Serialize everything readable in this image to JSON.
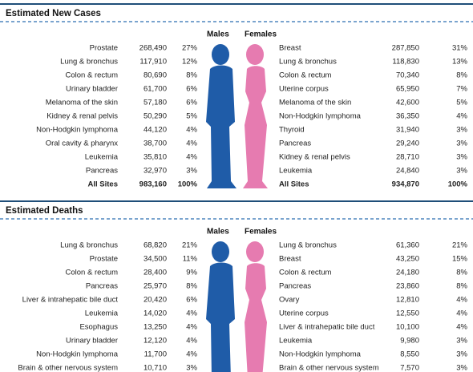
{
  "sections": [
    {
      "title": "Estimated New Cases",
      "males_label": "Males",
      "females_label": "Females",
      "males": [
        [
          "Prostate",
          "268,490",
          "27%"
        ],
        [
          "Lung & bronchus",
          "117,910",
          "12%"
        ],
        [
          "Colon & rectum",
          "80,690",
          "8%"
        ],
        [
          "Urinary bladder",
          "61,700",
          "6%"
        ],
        [
          "Melanoma of the skin",
          "57,180",
          "6%"
        ],
        [
          "Kidney & renal pelvis",
          "50,290",
          "5%"
        ],
        [
          "Non-Hodgkin lymphoma",
          "44,120",
          "4%"
        ],
        [
          "Oral cavity & pharynx",
          "38,700",
          "4%"
        ],
        [
          "Leukemia",
          "35,810",
          "4%"
        ],
        [
          "Pancreas",
          "32,970",
          "3%"
        ]
      ],
      "males_total": [
        "All Sites",
        "983,160",
        "100%"
      ],
      "females": [
        [
          "Breast",
          "287,850",
          "31%"
        ],
        [
          "Lung & bronchus",
          "118,830",
          "13%"
        ],
        [
          "Colon & rectum",
          "70,340",
          "8%"
        ],
        [
          "Uterine corpus",
          "65,950",
          "7%"
        ],
        [
          "Melanoma of the skin",
          "42,600",
          "5%"
        ],
        [
          "Non-Hodgkin lymphoma",
          "36,350",
          "4%"
        ],
        [
          "Thyroid",
          "31,940",
          "3%"
        ],
        [
          "Pancreas",
          "29,240",
          "3%"
        ],
        [
          "Kidney & renal pelvis",
          "28,710",
          "3%"
        ],
        [
          "Leukemia",
          "24,840",
          "3%"
        ]
      ],
      "females_total": [
        "All Sites",
        "934,870",
        "100%"
      ]
    },
    {
      "title": "Estimated Deaths",
      "males_label": "Males",
      "females_label": "Females",
      "males": [
        [
          "Lung & bronchus",
          "68,820",
          "21%"
        ],
        [
          "Prostate",
          "34,500",
          "11%"
        ],
        [
          "Colon & rectum",
          "28,400",
          "9%"
        ],
        [
          "Pancreas",
          "25,970",
          "8%"
        ],
        [
          "Liver & intrahepatic bile duct",
          "20,420",
          "6%"
        ],
        [
          "Leukemia",
          "14,020",
          "4%"
        ],
        [
          "Esophagus",
          "13,250",
          "4%"
        ],
        [
          "Urinary bladder",
          "12,120",
          "4%"
        ],
        [
          "Non-Hodgkin lymphoma",
          "11,700",
          "4%"
        ],
        [
          "Brain & other nervous system",
          "10,710",
          "3%"
        ]
      ],
      "females": [
        [
          "Lung & bronchus",
          "61,360",
          "21%"
        ],
        [
          "Breast",
          "43,250",
          "15%"
        ],
        [
          "Colon & rectum",
          "24,180",
          "8%"
        ],
        [
          "Pancreas",
          "23,860",
          "8%"
        ],
        [
          "Ovary",
          "12,810",
          "4%"
        ],
        [
          "Uterine corpus",
          "12,550",
          "4%"
        ],
        [
          "Liver & intrahepatic bile duct",
          "10,100",
          "4%"
        ],
        [
          "Leukemia",
          "9,980",
          "3%"
        ],
        [
          "Non-Hodgkin lymphoma",
          "8,550",
          "3%"
        ],
        [
          "Brain & other nervous system",
          "7,570",
          "3%"
        ]
      ]
    }
  ]
}
